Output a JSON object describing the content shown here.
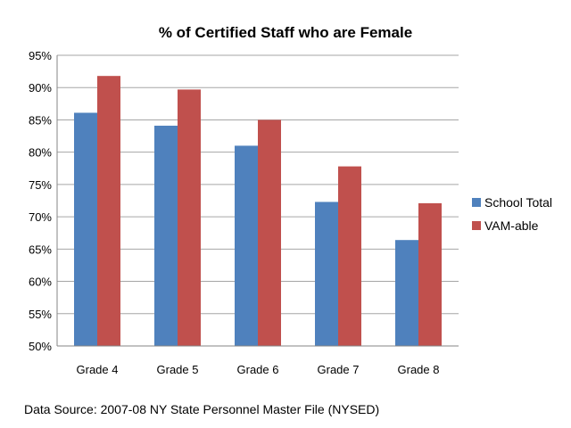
{
  "chart_data": {
    "type": "bar",
    "title": "% of Certified Staff who are Female",
    "xlabel": "",
    "ylabel": "",
    "categories": [
      "Grade 4",
      "Grade 5",
      "Grade 6",
      "Grade 7",
      "Grade 8"
    ],
    "series": [
      {
        "name": "School Total",
        "values": [
          86.1,
          84.1,
          81.0,
          72.3,
          66.4
        ],
        "color": "#4f81bd"
      },
      {
        "name": "VAM-able",
        "values": [
          91.8,
          89.7,
          85.0,
          77.8,
          72.1
        ],
        "color": "#c0504d"
      }
    ],
    "ylim": [
      50,
      95
    ],
    "yticks": [
      50,
      55,
      60,
      65,
      70,
      75,
      80,
      85,
      90,
      95
    ],
    "ytick_labels": [
      "50%",
      "55%",
      "60%",
      "65%",
      "70%",
      "75%",
      "80%",
      "85%",
      "90%",
      "95%"
    ],
    "grid": true,
    "legend_position": "right"
  },
  "footer": {
    "source": "Data Source: 2007-08 NY State Personnel Master File (NYSED)"
  }
}
